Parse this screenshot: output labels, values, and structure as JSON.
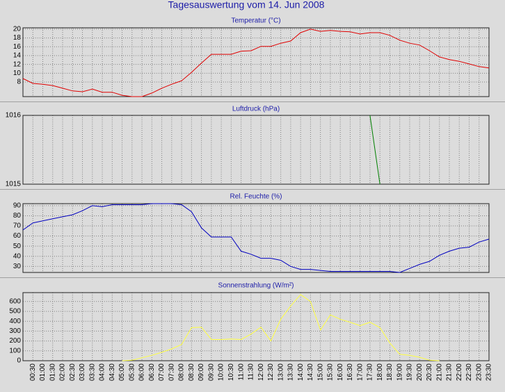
{
  "title": "Tagesauswertung vom 14. Jun 2008",
  "chart_data": [
    {
      "type": "line",
      "title": "Temperatur (°C)",
      "color": "#e00000",
      "grid": true,
      "ylim": [
        4.7,
        20.3
      ],
      "yticks": [
        8,
        10,
        12,
        14,
        16,
        18,
        20
      ],
      "values": [
        8.8,
        7.7,
        7.5,
        7.2,
        6.6,
        6.0,
        5.8,
        6.4,
        5.7,
        5.7,
        5.0,
        4.7,
        4.7,
        5.5,
        6.6,
        7.5,
        8.3,
        10.2,
        12.3,
        14.3,
        14.3,
        14.3,
        15.0,
        15.1,
        16.1,
        16.1,
        16.8,
        17.3,
        19.2,
        20.0,
        19.5,
        19.7,
        19.5,
        19.4,
        18.9,
        19.2,
        19.2,
        18.6,
        17.5,
        16.8,
        16.4,
        15.1,
        13.7,
        13.1,
        12.7,
        12.1,
        11.5,
        11.2
      ]
    },
    {
      "type": "line",
      "title": "Luftdruck (hPa)",
      "color": "#008000",
      "grid": true,
      "ylim": [
        1015,
        1016
      ],
      "yticks": [
        1015,
        1016
      ],
      "values": [
        null,
        null,
        null,
        null,
        null,
        null,
        null,
        null,
        null,
        null,
        null,
        null,
        null,
        null,
        null,
        null,
        null,
        null,
        null,
        null,
        null,
        null,
        null,
        null,
        null,
        null,
        null,
        null,
        null,
        null,
        null,
        null,
        null,
        null,
        null,
        1016,
        1015,
        null,
        null,
        null,
        null,
        null,
        null,
        null,
        null,
        null,
        null,
        null
      ]
    },
    {
      "type": "line",
      "title": "Rel. Feuchte (%)",
      "color": "#0000c0",
      "grid": true,
      "ylim": [
        24,
        92
      ],
      "yticks": [
        30,
        40,
        50,
        60,
        70,
        80,
        90
      ],
      "values": [
        66,
        73,
        75,
        77,
        79,
        81,
        85,
        90,
        89,
        91,
        91,
        91,
        91,
        92,
        92,
        92,
        91,
        84,
        68,
        59,
        59,
        59,
        45,
        42,
        38,
        38,
        36,
        30,
        27,
        27,
        26,
        25,
        25,
        25,
        25,
        25,
        25,
        25,
        24,
        28,
        32,
        35,
        41,
        45,
        48,
        49,
        54,
        57
      ]
    },
    {
      "type": "line",
      "title": "Sonnenstrahlung (W/m²)",
      "color": "#ffff40",
      "grid": true,
      "ylim": [
        0,
        690
      ],
      "yticks": [
        0,
        100,
        200,
        300,
        400,
        500,
        600
      ],
      "categories": [
        null,
        "00:30",
        "01:00",
        "01:30",
        "02:00",
        "02:30",
        "03:00",
        "03:30",
        "04:00",
        "04:30",
        "05:00",
        "05:30",
        "06:00",
        "06:30",
        "07:00",
        "07:30",
        "08:00",
        "08:30",
        "09:00",
        "09:30",
        "10:00",
        "10:30",
        "11:00",
        "11:30",
        "12:00",
        "12:30",
        "13:00",
        "13:30",
        "14:00",
        "14:30",
        "15:00",
        "15:30",
        "16:00",
        "16:30",
        "17:00",
        "17:30",
        "18:00",
        "18:30",
        "19:00",
        "19:30",
        "20:00",
        "20:30",
        "21:00",
        "21:30",
        "22:00",
        "22:30",
        "23:00",
        "23:30"
      ],
      "values": [
        null,
        null,
        null,
        null,
        null,
        null,
        null,
        null,
        null,
        null,
        0,
        5,
        30,
        55,
        85,
        120,
        165,
        335,
        340,
        215,
        215,
        220,
        215,
        270,
        340,
        200,
        420,
        555,
        670,
        600,
        310,
        465,
        420,
        390,
        355,
        390,
        335,
        180,
        65,
        55,
        35,
        5,
        0,
        null,
        null,
        null,
        null,
        null
      ]
    }
  ]
}
